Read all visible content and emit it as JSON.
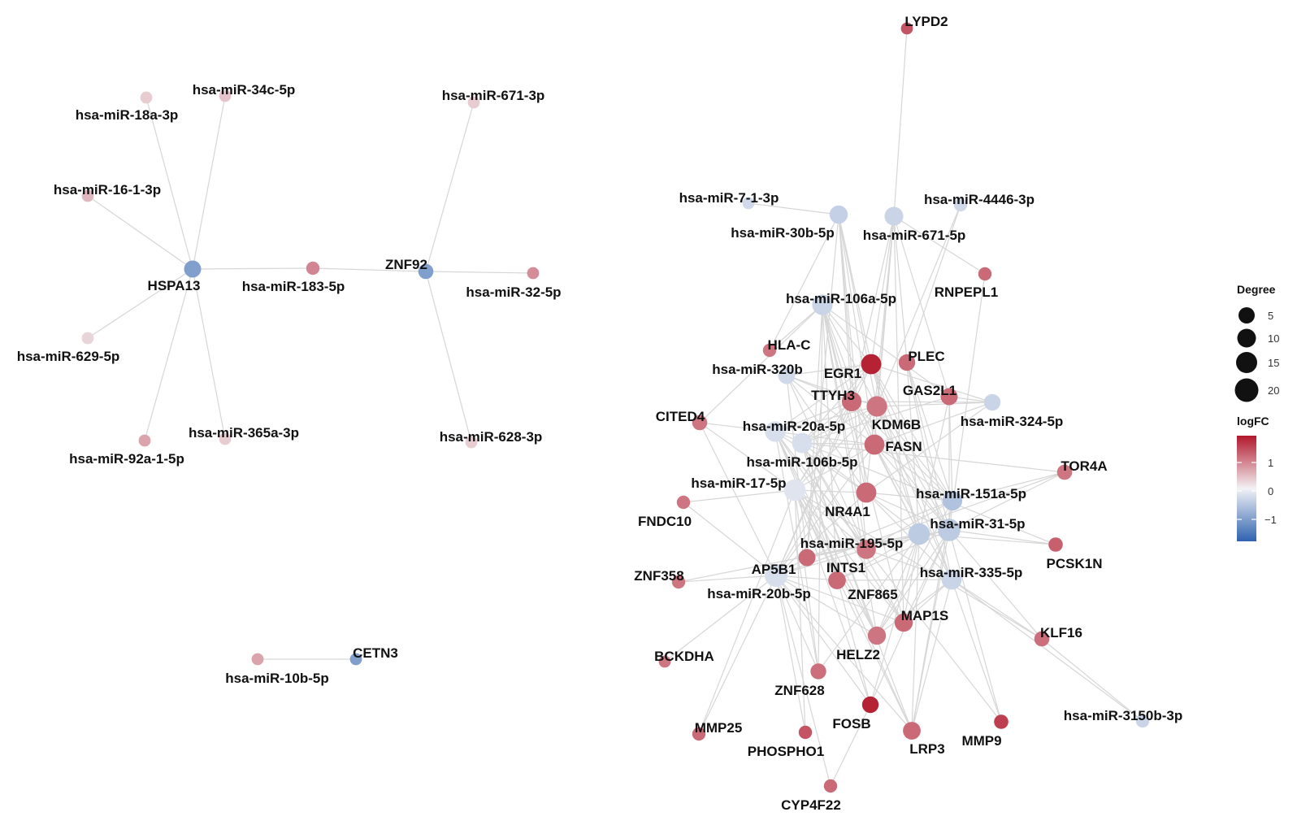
{
  "legend": {
    "degree_title": "Degree",
    "degree_ticks": [
      "5",
      "10",
      "15",
      "20"
    ],
    "logfc_title": "logFC",
    "logfc_ticks": [
      "1",
      "0",
      "−1"
    ],
    "colors": {
      "low": "#2e62b0",
      "mid": "#f2f2f5",
      "high": "#b2182b"
    }
  },
  "edge_color": "#d6d6d6",
  "nodes": [
    {
      "id": "HSPA13",
      "label": "HSPA13",
      "type": "gene",
      "fc": -0.9
    },
    {
      "id": "miR18a",
      "label": "hsa-miR-18a-3p",
      "type": "mirna",
      "fc": 0.2
    },
    {
      "id": "miR34c",
      "label": "hsa-miR-34c-5p",
      "type": "mirna",
      "fc": 0.25
    },
    {
      "id": "miR161",
      "label": "hsa-miR-16-1-3p",
      "type": "mirna",
      "fc": 0.35
    },
    {
      "id": "miR629",
      "label": "hsa-miR-629-5p",
      "type": "mirna",
      "fc": 0.15
    },
    {
      "id": "miR92a",
      "label": "hsa-miR-92a-1-5p",
      "type": "mirna",
      "fc": 0.5
    },
    {
      "id": "miR365",
      "label": "hsa-miR-365a-3p",
      "type": "mirna",
      "fc": 0.2
    },
    {
      "id": "miR183",
      "label": "hsa-miR-183-5p",
      "type": "mirna",
      "fc": 0.75
    },
    {
      "id": "ZNF92",
      "label": "ZNF92",
      "type": "gene",
      "fc": -0.9
    },
    {
      "id": "miR671_3",
      "label": "hsa-miR-671-3p",
      "type": "mirna",
      "fc": 0.2
    },
    {
      "id": "miR32",
      "label": "hsa-miR-32-5p",
      "type": "mirna",
      "fc": 0.7
    },
    {
      "id": "miR628",
      "label": "hsa-miR-628-3p",
      "type": "mirna",
      "fc": 0.2
    },
    {
      "id": "CETN3",
      "label": "CETN3",
      "type": "gene",
      "fc": -0.9
    },
    {
      "id": "miR10b",
      "label": "hsa-miR-10b-5p",
      "type": "mirna",
      "fc": 0.5
    },
    {
      "id": "LYPD2",
      "label": "LYPD2",
      "type": "gene",
      "fc": 1.2
    },
    {
      "id": "miR7",
      "label": "hsa-miR-7-1-3p",
      "type": "mirna",
      "fc": -0.2
    },
    {
      "id": "miR4446",
      "label": "hsa-miR-4446-3p",
      "type": "mirna",
      "fc": -0.2
    },
    {
      "id": "miR30b",
      "label": "hsa-miR-30b-5p",
      "type": "mirna",
      "fc": -0.3
    },
    {
      "id": "miR671_5",
      "label": "hsa-miR-671-5p",
      "type": "mirna",
      "fc": -0.25
    },
    {
      "id": "RNPEPL1",
      "label": "RNPEPL1",
      "type": "gene",
      "fc": 1.0
    },
    {
      "id": "miR106a",
      "label": "hsa-miR-106a-5p",
      "type": "mirna",
      "fc": -0.25
    },
    {
      "id": "HLAC",
      "label": "HLA-C",
      "type": "gene",
      "fc": 0.9
    },
    {
      "id": "PLEC",
      "label": "PLEC",
      "type": "gene",
      "fc": 1.0
    },
    {
      "id": "EGR1",
      "label": "EGR1",
      "type": "gene",
      "fc": 1.7
    },
    {
      "id": "miR320b",
      "label": "hsa-miR-320b",
      "type": "mirna",
      "fc": -0.2
    },
    {
      "id": "TTYH3",
      "label": "TTYH3",
      "type": "gene",
      "fc": 1.0
    },
    {
      "id": "GAS2L1",
      "label": "GAS2L1",
      "type": "gene",
      "fc": 1.0
    },
    {
      "id": "KDM6B",
      "label": "KDM6B",
      "type": "gene",
      "fc": 0.9
    },
    {
      "id": "CITED4",
      "label": "CITED4",
      "type": "gene",
      "fc": 0.9
    },
    {
      "id": "miR20a",
      "label": "hsa-miR-20a-5p",
      "type": "mirna",
      "fc": -0.15
    },
    {
      "id": "miR324",
      "label": "hsa-miR-324-5p",
      "type": "mirna",
      "fc": -0.25
    },
    {
      "id": "FASN",
      "label": "FASN",
      "type": "gene",
      "fc": 1.0
    },
    {
      "id": "miR106b",
      "label": "hsa-miR-106b-5p",
      "type": "mirna",
      "fc": -0.15
    },
    {
      "id": "TOR4A",
      "label": "TOR4A",
      "type": "gene",
      "fc": 0.9
    },
    {
      "id": "miR17",
      "label": "hsa-miR-17-5p",
      "type": "mirna",
      "fc": -0.1
    },
    {
      "id": "FNDC10",
      "label": "FNDC10",
      "type": "gene",
      "fc": 0.9
    },
    {
      "id": "NR4A1",
      "label": "NR4A1",
      "type": "gene",
      "fc": 1.0
    },
    {
      "id": "miR151a",
      "label": "hsa-miR-151a-5p",
      "type": "mirna",
      "fc": -0.45
    },
    {
      "id": "miR31",
      "label": "hsa-miR-31-5p",
      "type": "mirna",
      "fc": -0.35
    },
    {
      "id": "miR195",
      "label": "hsa-miR-195-5p",
      "type": "mirna",
      "fc": -0.35
    },
    {
      "id": "PCSK1N",
      "label": "PCSK1N",
      "type": "gene",
      "fc": 1.1
    },
    {
      "id": "AP5B1",
      "label": "AP5B1",
      "type": "gene",
      "fc": 1.0
    },
    {
      "id": "INTS1",
      "label": "INTS1",
      "type": "gene",
      "fc": 0.9
    },
    {
      "id": "ZNF358",
      "label": "ZNF358",
      "type": "gene",
      "fc": 0.9
    },
    {
      "id": "miR335",
      "label": "hsa-miR-335-5p",
      "type": "mirna",
      "fc": -0.25
    },
    {
      "id": "miR20b",
      "label": "hsa-miR-20b-5p",
      "type": "mirna",
      "fc": -0.15
    },
    {
      "id": "ZNF865",
      "label": "ZNF865",
      "type": "gene",
      "fc": 1.0
    },
    {
      "id": "MAP1S",
      "label": "MAP1S",
      "type": "gene",
      "fc": 1.0
    },
    {
      "id": "KLF16",
      "label": "KLF16",
      "type": "gene",
      "fc": 0.95
    },
    {
      "id": "BCKDHA",
      "label": "BCKDHA",
      "type": "gene",
      "fc": 0.9
    },
    {
      "id": "HELZ2",
      "label": "HELZ2",
      "type": "gene",
      "fc": 0.9
    },
    {
      "id": "ZNF628",
      "label": "ZNF628",
      "type": "gene",
      "fc": 0.95
    },
    {
      "id": "miR3150b",
      "label": "hsa-miR-3150b-3p",
      "type": "mirna",
      "fc": -0.25
    },
    {
      "id": "FOSB",
      "label": "FOSB",
      "type": "gene",
      "fc": 1.7
    },
    {
      "id": "MMP25",
      "label": "MMP25",
      "type": "gene",
      "fc": 1.0
    },
    {
      "id": "MMP9",
      "label": "MMP9",
      "type": "gene",
      "fc": 1.4
    },
    {
      "id": "LRP3",
      "label": "LRP3",
      "type": "gene",
      "fc": 1.0
    },
    {
      "id": "PHOSPHO1",
      "label": "PHOSPHO1",
      "type": "gene",
      "fc": 1.2
    },
    {
      "id": "CYP4F22",
      "label": "CYP4F22",
      "type": "gene",
      "fc": 1.0
    }
  ],
  "edges": [
    [
      "HSPA13",
      "miR18a"
    ],
    [
      "HSPA13",
      "miR34c"
    ],
    [
      "HSPA13",
      "miR161"
    ],
    [
      "HSPA13",
      "miR629"
    ],
    [
      "HSPA13",
      "miR92a"
    ],
    [
      "HSPA13",
      "miR365"
    ],
    [
      "HSPA13",
      "miR183"
    ],
    [
      "ZNF92",
      "miR183"
    ],
    [
      "ZNF92",
      "miR671_3"
    ],
    [
      "ZNF92",
      "miR32"
    ],
    [
      "ZNF92",
      "miR628"
    ],
    [
      "CETN3",
      "miR10b"
    ],
    [
      "miR671_5",
      "LYPD2"
    ],
    [
      "miR7",
      "miR30b"
    ],
    [
      "miR4446",
      "PLEC"
    ],
    [
      "miR4446",
      "KDM6B"
    ],
    [
      "miR30b",
      "HLAC"
    ],
    [
      "miR30b",
      "EGR1"
    ],
    [
      "miR30b",
      "TTYH3"
    ],
    [
      "miR30b",
      "KDM6B"
    ],
    [
      "miR30b",
      "FASN"
    ],
    [
      "miR30b",
      "NR4A1"
    ],
    [
      "miR30b",
      "AP5B1"
    ],
    [
      "miR30b",
      "INTS1"
    ],
    [
      "miR671_5",
      "EGR1"
    ],
    [
      "miR671_5",
      "PLEC"
    ],
    [
      "miR671_5",
      "RNPEPL1"
    ],
    [
      "miR671_5",
      "GAS2L1"
    ],
    [
      "miR671_5",
      "TTYH3"
    ],
    [
      "miR671_5",
      "KDM6B"
    ],
    [
      "miR671_5",
      "FASN"
    ],
    [
      "miR671_5",
      "NR4A1"
    ],
    [
      "miR671_5",
      "MAP1S"
    ],
    [
      "miR106a",
      "EGR1"
    ],
    [
      "miR106a",
      "HLAC"
    ],
    [
      "miR106a",
      "TTYH3"
    ],
    [
      "miR106a",
      "KDM6B"
    ],
    [
      "miR106a",
      "FASN"
    ],
    [
      "miR106a",
      "NR4A1"
    ],
    [
      "miR106a",
      "CITED4"
    ],
    [
      "miR106a",
      "GAS2L1"
    ],
    [
      "miR106a",
      "INTS1"
    ],
    [
      "miR106a",
      "ZNF865"
    ],
    [
      "miR106a",
      "AP5B1"
    ],
    [
      "miR106a",
      "ZNF628"
    ],
    [
      "miR106a",
      "HELZ2"
    ],
    [
      "miR106a",
      "MAP1S"
    ],
    [
      "miR320b",
      "EGR1"
    ],
    [
      "miR320b",
      "TTYH3"
    ],
    [
      "miR320b",
      "KDM6B"
    ],
    [
      "miR320b",
      "FASN"
    ],
    [
      "miR320b",
      "NR4A1"
    ],
    [
      "miR320b",
      "AP5B1"
    ],
    [
      "miR320b",
      "INTS1"
    ],
    [
      "miR20a",
      "EGR1"
    ],
    [
      "miR20a",
      "TTYH3"
    ],
    [
      "miR20a",
      "KDM6B"
    ],
    [
      "miR20a",
      "FASN"
    ],
    [
      "miR20a",
      "NR4A1"
    ],
    [
      "miR20a",
      "CITED4"
    ],
    [
      "miR20a",
      "ZNF865"
    ],
    [
      "miR20a",
      "INTS1"
    ],
    [
      "miR20a",
      "HELZ2"
    ],
    [
      "miR20a",
      "ZNF628"
    ],
    [
      "miR20a",
      "MAP1S"
    ],
    [
      "miR20a",
      "LRP3"
    ],
    [
      "miR20a",
      "MMP9"
    ],
    [
      "miR20a",
      "PCSK1N"
    ],
    [
      "miR106b",
      "EGR1"
    ],
    [
      "miR106b",
      "TTYH3"
    ],
    [
      "miR106b",
      "KDM6B"
    ],
    [
      "miR106b",
      "FASN"
    ],
    [
      "miR106b",
      "NR4A1"
    ],
    [
      "miR106b",
      "GAS2L1"
    ],
    [
      "miR106b",
      "INTS1"
    ],
    [
      "miR106b",
      "ZNF865"
    ],
    [
      "miR106b",
      "HELZ2"
    ],
    [
      "miR106b",
      "MAP1S"
    ],
    [
      "miR106b",
      "FOSB"
    ],
    [
      "miR106b",
      "LRP3"
    ],
    [
      "miR106b",
      "TOR4A"
    ],
    [
      "miR17",
      "EGR1"
    ],
    [
      "miR17",
      "TTYH3"
    ],
    [
      "miR17",
      "KDM6B"
    ],
    [
      "miR17",
      "FASN"
    ],
    [
      "miR17",
      "NR4A1"
    ],
    [
      "miR17",
      "FNDC10"
    ],
    [
      "miR17",
      "CITED4"
    ],
    [
      "miR17",
      "INTS1"
    ],
    [
      "miR17",
      "ZNF865"
    ],
    [
      "miR17",
      "HELZ2"
    ],
    [
      "miR17",
      "ZNF628"
    ],
    [
      "miR17",
      "MAP1S"
    ],
    [
      "miR17",
      "FOSB"
    ],
    [
      "miR17",
      "LRP3"
    ],
    [
      "miR17",
      "PHOSPHO1"
    ],
    [
      "miR17",
      "KLF16"
    ],
    [
      "miR17",
      "MMP25"
    ],
    [
      "miR324",
      "EGR1"
    ],
    [
      "miR324",
      "GAS2L1"
    ],
    [
      "miR324",
      "FASN"
    ],
    [
      "miR324",
      "KDM6B"
    ],
    [
      "miR324",
      "NR4A1"
    ],
    [
      "miR324",
      "TTYH3"
    ],
    [
      "miR151a",
      "EGR1"
    ],
    [
      "miR151a",
      "PLEC"
    ],
    [
      "miR151a",
      "GAS2L1"
    ],
    [
      "miR151a",
      "FASN"
    ],
    [
      "miR151a",
      "KDM6B"
    ],
    [
      "miR151a",
      "TTYH3"
    ],
    [
      "miR151a",
      "NR4A1"
    ],
    [
      "miR151a",
      "TOR4A"
    ],
    [
      "miR151a",
      "INTS1"
    ],
    [
      "miR151a",
      "AP5B1"
    ],
    [
      "miR151a",
      "HELZ2"
    ],
    [
      "miR151a",
      "LRP3"
    ],
    [
      "miR31",
      "EGR1"
    ],
    [
      "miR31",
      "PLEC"
    ],
    [
      "miR31",
      "GAS2L1"
    ],
    [
      "miR31",
      "FASN"
    ],
    [
      "miR31",
      "KDM6B"
    ],
    [
      "miR31",
      "TTYH3"
    ],
    [
      "miR31",
      "NR4A1"
    ],
    [
      "miR31",
      "PCSK1N"
    ],
    [
      "miR31",
      "TOR4A"
    ],
    [
      "miR31",
      "INTS1"
    ],
    [
      "miR31",
      "ZNF865"
    ],
    [
      "miR31",
      "MAP1S"
    ],
    [
      "miR31",
      "LRP3"
    ],
    [
      "miR31",
      "MMP9"
    ],
    [
      "miR31",
      "AP5B1"
    ],
    [
      "miR31",
      "HELZ2"
    ],
    [
      "miR31",
      "FOSB"
    ],
    [
      "miR31",
      "RNPEPL1"
    ],
    [
      "miR31",
      "KLF16"
    ],
    [
      "miR195",
      "EGR1"
    ],
    [
      "miR195",
      "FASN"
    ],
    [
      "miR195",
      "KDM6B"
    ],
    [
      "miR195",
      "NR4A1"
    ],
    [
      "miR195",
      "TTYH3"
    ],
    [
      "miR195",
      "PLEC"
    ],
    [
      "miR195",
      "INTS1"
    ],
    [
      "miR195",
      "AP5B1"
    ],
    [
      "miR195",
      "ZNF865"
    ],
    [
      "miR195",
      "MAP1S"
    ],
    [
      "miR195",
      "HELZ2"
    ],
    [
      "miR195",
      "ZNF628"
    ],
    [
      "miR195",
      "FOSB"
    ],
    [
      "miR195",
      "LRP3"
    ],
    [
      "miR195",
      "ZNF358"
    ],
    [
      "miR195",
      "PCSK1N"
    ],
    [
      "miR195",
      "GAS2L1"
    ],
    [
      "miR335",
      "EGR1"
    ],
    [
      "miR335",
      "FASN"
    ],
    [
      "miR335",
      "NR4A1"
    ],
    [
      "miR335",
      "KDM6B"
    ],
    [
      "miR335",
      "PLEC"
    ],
    [
      "miR335",
      "KLF16"
    ],
    [
      "miR335",
      "MAP1S"
    ],
    [
      "miR335",
      "LRP3"
    ],
    [
      "miR335",
      "MMP9"
    ],
    [
      "miR335",
      "ZNF865"
    ],
    [
      "miR335",
      "miR3150b"
    ],
    [
      "miR335",
      "HELZ2"
    ],
    [
      "miR335",
      "INTS1"
    ],
    [
      "miR20b",
      "EGR1"
    ],
    [
      "miR20b",
      "FASN"
    ],
    [
      "miR20b",
      "KDM6B"
    ],
    [
      "miR20b",
      "TTYH3"
    ],
    [
      "miR20b",
      "NR4A1"
    ],
    [
      "miR20b",
      "CITED4"
    ],
    [
      "miR20b",
      "ZNF358"
    ],
    [
      "miR20b",
      "INTS1"
    ],
    [
      "miR20b",
      "ZNF865"
    ],
    [
      "miR20b",
      "HELZ2"
    ],
    [
      "miR20b",
      "ZNF628"
    ],
    [
      "miR20b",
      "MAP1S"
    ],
    [
      "miR20b",
      "BCKDHA"
    ],
    [
      "miR20b",
      "MMP25"
    ],
    [
      "miR20b",
      "PHOSPHO1"
    ],
    [
      "miR20b",
      "FOSB"
    ],
    [
      "miR20b",
      "LRP3"
    ],
    [
      "miR20b",
      "AP5B1"
    ],
    [
      "miR20b",
      "TOR4A"
    ],
    [
      "miR20b",
      "CYP4F22"
    ],
    [
      "miR20b",
      "FNDC10"
    ],
    [
      "FOSB",
      "CYP4F22"
    ],
    [
      "KLF16",
      "miR3150b"
    ]
  ]
}
